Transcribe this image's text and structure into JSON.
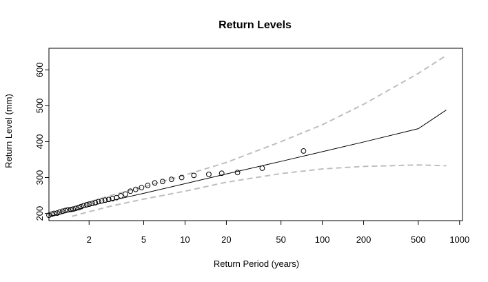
{
  "chart_data": {
    "type": "line",
    "title": "Return Levels",
    "xlabel": "Return Period (years)",
    "ylabel": "Return Level (mm)",
    "x_scale": "log",
    "xlim": [
      1.02,
      1050
    ],
    "ylim": [
      180,
      660
    ],
    "x_ticks": [
      2,
      5,
      10,
      20,
      50,
      100,
      200,
      500,
      1000
    ],
    "y_ticks": [
      200,
      300,
      400,
      500,
      600
    ],
    "grid": false,
    "legend": "none",
    "series": [
      {
        "style": "solid-line",
        "color": "#000000",
        "x": [
          1.05,
          1.2,
          1.5,
          2,
          3,
          5,
          10,
          20,
          50,
          100,
          200,
          500,
          800
        ],
        "y": [
          193,
          197,
          207,
          220,
          237,
          256,
          283,
          310,
          345,
          372,
          399,
          436,
          488
        ]
      },
      {
        "style": "dashed-line",
        "color": "#bebebe",
        "x": [
          1.2,
          1.5,
          2,
          3,
          5,
          10,
          20,
          50,
          100,
          200,
          500,
          800
        ],
        "y": [
          202,
          217,
          232,
          252,
          274,
          307,
          342,
          400,
          447,
          504,
          590,
          640
        ]
      },
      {
        "style": "dashed-line",
        "color": "#bebebe",
        "x": [
          1.5,
          2,
          3,
          5,
          10,
          20,
          50,
          100,
          200,
          500,
          800
        ],
        "y": [
          192,
          205,
          222,
          240,
          262,
          287,
          311,
          324,
          331,
          335,
          333
        ]
      },
      {
        "style": "open-circles",
        "color": "#000000",
        "x": [
          1.02,
          1.07,
          1.11,
          1.17,
          1.22,
          1.28,
          1.34,
          1.4,
          1.47,
          1.53,
          1.6,
          1.68,
          1.75,
          1.83,
          1.92,
          2.01,
          2.11,
          2.22,
          2.34,
          2.47,
          2.62,
          2.78,
          2.96,
          3.17,
          3.41,
          3.68,
          4.0,
          4.37,
          4.82,
          5.35,
          6.02,
          6.86,
          7.96,
          9.45,
          11.6,
          14.9,
          18.5,
          24.1,
          36.5,
          73
        ],
        "y": [
          195,
          198,
          200,
          201,
          204,
          206,
          208,
          210,
          211,
          212,
          214,
          216,
          219,
          222,
          224,
          226,
          228,
          230,
          233,
          235,
          237,
          239,
          241,
          244,
          249,
          254,
          262,
          267,
          272,
          278,
          285,
          289,
          295,
          300,
          306,
          309,
          312,
          314,
          326,
          374
        ]
      }
    ]
  }
}
